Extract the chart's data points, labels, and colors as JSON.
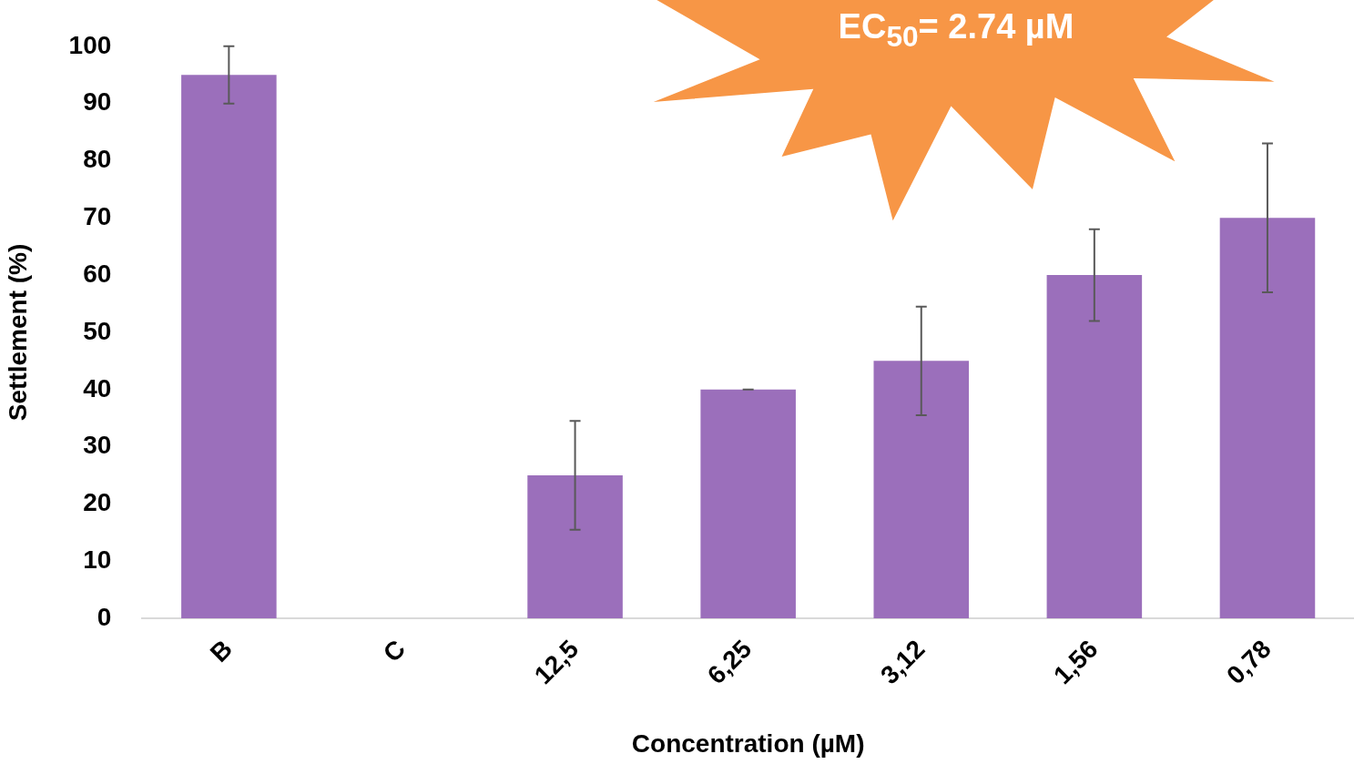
{
  "chart_data": {
    "type": "bar",
    "xlabel": "Concentration (µM)",
    "ylabel": "Settlement (%)",
    "annotations": [
      "EC$_{50}$= 2.74 µM"
    ],
    "categories": [
      "B",
      "C",
      "12,5",
      "6,25",
      "3,12",
      "1,56",
      "0,78"
    ],
    "values": [
      95,
      0,
      25,
      40,
      45,
      60,
      70
    ],
    "errors": [
      5,
      null,
      9.5,
      0,
      9.5,
      8,
      13
    ],
    "color": "#9b6fbb",
    "ylim": [
      0,
      100
    ],
    "yticks": [
      0,
      10,
      20,
      30,
      40,
      50,
      60,
      70,
      80,
      90,
      100
    ],
    "grid": false,
    "legend": false
  }
}
